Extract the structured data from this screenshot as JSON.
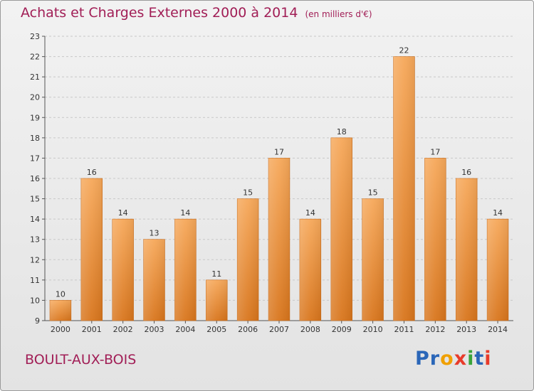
{
  "header": {
    "title": "Achats et Charges Externes 2000 à 2014",
    "subtitle": "(en milliers d'€)"
  },
  "footer": {
    "commune": "BOULT-AUX-BOIS",
    "logo_text": "Proxiti"
  },
  "colors": {
    "title": "#a11e56",
    "bar_top": "#f6a85a",
    "bar_bottom": "#d8751c",
    "logo_letters": [
      "#2a66b8",
      "#2a66b8",
      "#f0a000",
      "#e83b2a",
      "#3aa53a",
      "#2a66b8",
      "#e83b2a"
    ]
  },
  "chart_data": {
    "type": "bar",
    "title": "Achats et Charges Externes 2000 à 2014",
    "subtitle": "(en milliers d'€)",
    "categories": [
      "2000",
      "2001",
      "2002",
      "2003",
      "2004",
      "2005",
      "2006",
      "2007",
      "2008",
      "2009",
      "2010",
      "2011",
      "2012",
      "2013",
      "2014"
    ],
    "values": [
      10,
      16,
      14,
      13,
      14,
      11,
      15,
      17,
      14,
      18,
      15,
      22,
      17,
      16,
      14
    ],
    "ylim": [
      9,
      23
    ],
    "yticks": [
      9,
      10,
      11,
      12,
      13,
      14,
      15,
      16,
      17,
      18,
      19,
      20,
      21,
      22,
      23
    ],
    "grid": true,
    "data_labels": true,
    "xlabel": "",
    "ylabel": ""
  }
}
